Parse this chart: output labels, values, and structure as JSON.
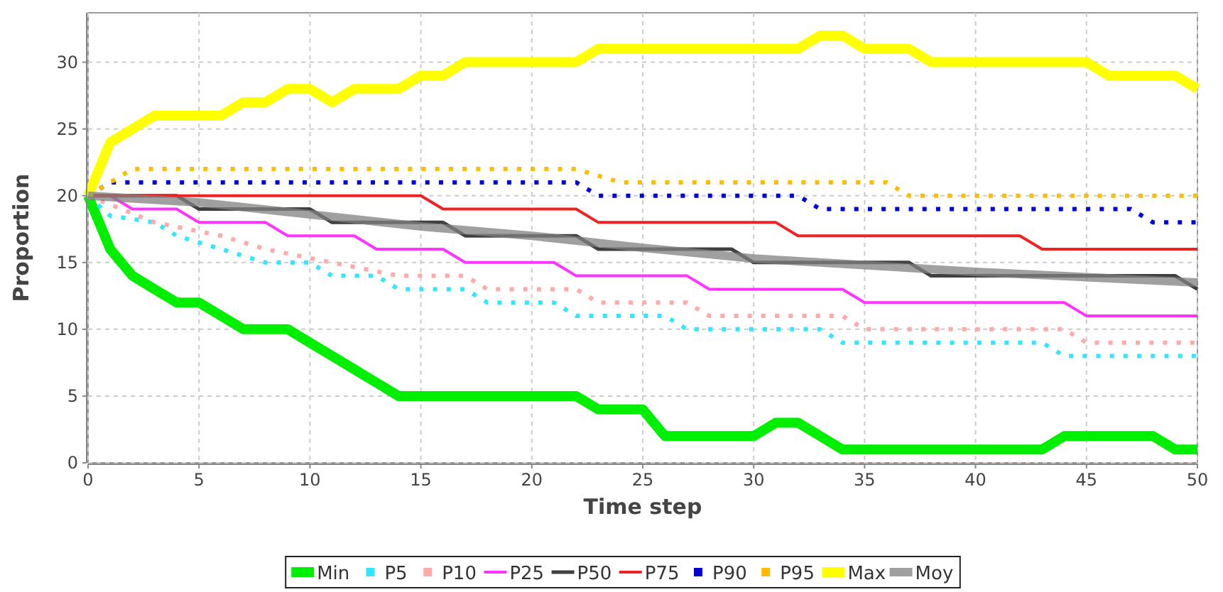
{
  "chart_data": {
    "type": "line",
    "xlabel": "Time step",
    "ylabel": "Proportion",
    "xlim": [
      0,
      50
    ],
    "ylim": [
      0,
      33.7
    ],
    "xticks": [
      0,
      5,
      10,
      15,
      20,
      25,
      30,
      35,
      40,
      45,
      50
    ],
    "yticks": [
      0,
      5,
      10,
      15,
      20,
      25,
      30
    ],
    "grid": true,
    "legend": "bottom",
    "marker": "none",
    "series": [
      {
        "name": "Min",
        "color": "#00ee00",
        "x": [
          0,
          1,
          2,
          3,
          4,
          5,
          6,
          7,
          8,
          9,
          10,
          11,
          12,
          13,
          14,
          15,
          20,
          22,
          23,
          25,
          26,
          30,
          31,
          32,
          33,
          34,
          43,
          44,
          47,
          48,
          49,
          50
        ],
        "values": [
          20,
          16,
          14,
          13,
          12,
          12,
          11,
          10,
          10,
          10,
          9,
          8,
          7,
          6,
          5,
          5,
          5,
          5,
          4,
          4,
          2,
          2,
          3,
          3,
          2,
          1,
          1,
          2,
          2,
          2,
          1,
          1
        ]
      },
      {
        "name": "P5",
        "color": "#33e6ff",
        "line_style": "dotted",
        "x": [
          0,
          1,
          3,
          4,
          6,
          8,
          10,
          11,
          13,
          14,
          17,
          18,
          21,
          22,
          26,
          27,
          33,
          34,
          43,
          44,
          50
        ],
        "values": [
          20,
          18.5,
          18,
          17,
          16,
          15,
          15,
          14,
          14,
          13,
          13,
          12,
          12,
          11,
          11,
          10,
          10,
          9,
          9,
          8,
          8
        ]
      },
      {
        "name": "P10",
        "color": "#ffaaaa",
        "line_style": "dotted",
        "x": [
          0,
          3,
          6,
          8,
          11,
          14,
          17,
          18,
          22,
          23,
          27,
          28,
          34,
          35,
          44,
          45,
          50
        ],
        "values": [
          20,
          18,
          17,
          16,
          15,
          14,
          14,
          13,
          13,
          12,
          12,
          11,
          11,
          10,
          10,
          9,
          9
        ]
      },
      {
        "name": "P25",
        "color": "#ff33ff",
        "x": [
          0,
          1,
          2,
          4,
          5,
          8,
          9,
          12,
          13,
          16,
          17,
          21,
          22,
          27,
          28,
          34,
          35,
          44,
          45,
          50
        ],
        "values": [
          20,
          20,
          19,
          19,
          18,
          18,
          17,
          17,
          16,
          16,
          15,
          15,
          14,
          14,
          13,
          13,
          12,
          12,
          11,
          11
        ]
      },
      {
        "name": "P50",
        "color": "#404040",
        "x": [
          0,
          4,
          5,
          10,
          11,
          16,
          17,
          22,
          23,
          29,
          30,
          37,
          38,
          49,
          50
        ],
        "values": [
          20,
          20,
          19,
          19,
          18,
          18,
          17,
          17,
          16,
          16,
          15,
          15,
          14,
          14,
          13
        ]
      },
      {
        "name": "P75",
        "color": "#ee2222",
        "x": [
          0,
          15,
          16,
          22,
          23,
          31,
          32,
          42,
          43,
          50
        ],
        "values": [
          20,
          20,
          19,
          19,
          18,
          18,
          17,
          17,
          16,
          16
        ]
      },
      {
        "name": "P90",
        "color": "#0000dd",
        "line_style": "dotted",
        "x": [
          0,
          1,
          22,
          23,
          32,
          33,
          47,
          48,
          50
        ],
        "values": [
          20,
          21,
          21,
          20,
          20,
          19,
          19,
          18,
          18
        ]
      },
      {
        "name": "P95",
        "color": "#ffbb00",
        "line_style": "dotted",
        "x": [
          0,
          2,
          22,
          24,
          36,
          37,
          50
        ],
        "values": [
          20,
          22,
          22,
          21,
          21,
          20,
          20
        ]
      },
      {
        "name": "Max",
        "color": "#ffff00",
        "x": [
          0,
          1,
          2,
          3,
          6,
          7,
          8,
          9,
          10,
          11,
          12,
          14,
          15,
          16,
          17,
          22,
          23,
          32,
          33,
          34,
          35,
          37,
          38,
          45,
          46,
          49,
          50
        ],
        "values": [
          20,
          24,
          25,
          26,
          26,
          27,
          27,
          28,
          28,
          27,
          28,
          28,
          29,
          29,
          30,
          30,
          31,
          31,
          32,
          32,
          31,
          31,
          30,
          30,
          29,
          29,
          28
        ]
      },
      {
        "name": "Moy",
        "color": "#808080",
        "x": [
          0,
          5,
          10,
          15,
          20,
          25,
          30,
          35,
          40,
          45,
          50
        ],
        "values": [
          20,
          19.5,
          18.6,
          17.7,
          17,
          16.1,
          15.3,
          14.8,
          14.3,
          13.9,
          13.5
        ]
      }
    ]
  }
}
